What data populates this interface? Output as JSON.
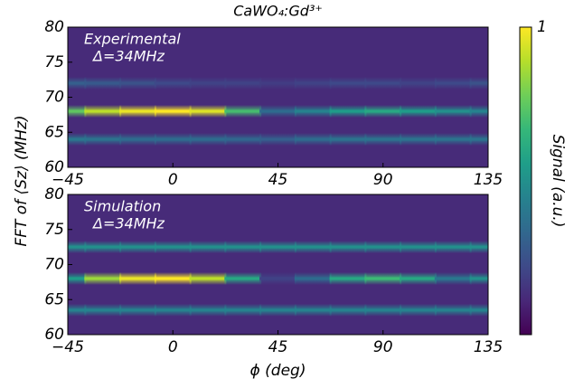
{
  "chart_data": [
    {
      "type": "heatmap",
      "title": "CaWO₄:Gd³⁺",
      "annotations": [
        "Experimental",
        "Δ=34MHz"
      ],
      "ylabel": "FFT of ⟨Sz⟩ (MHz)",
      "colormap": "viridis",
      "background_value": 0.12,
      "xlim": [
        -45,
        135
      ],
      "xticks": [
        {
          "value": -45,
          "label": "−45"
        },
        0,
        45,
        90,
        135
      ],
      "ylim": [
        60,
        80
      ],
      "yticks": [
        60,
        65,
        70,
        75,
        80
      ],
      "x": [
        -45,
        -30,
        -15,
        0,
        15,
        30,
        45,
        60,
        75,
        90,
        105,
        120,
        135
      ],
      "bands": [
        {
          "y": 72,
          "values": [
            0.3,
            0.28,
            0.25,
            0.22,
            0.2,
            0.2,
            0.18,
            0.2,
            0.22,
            0.22,
            0.2,
            0.22,
            0.25
          ]
        },
        {
          "y": 68,
          "values": [
            0.75,
            0.9,
            0.97,
            1.0,
            0.95,
            0.7,
            0.35,
            0.45,
            0.55,
            0.6,
            0.55,
            0.5,
            0.45
          ]
        },
        {
          "y": 64,
          "values": [
            0.4,
            0.38,
            0.35,
            0.35,
            0.35,
            0.33,
            0.3,
            0.35,
            0.38,
            0.38,
            0.38,
            0.38,
            0.38
          ]
        }
      ]
    },
    {
      "type": "heatmap",
      "annotations": [
        "Simulation",
        "Δ=34MHz"
      ],
      "xlabel": "ϕ (deg)",
      "colormap": "viridis",
      "background_value": 0.12,
      "xlim": [
        -45,
        135
      ],
      "xticks": [
        {
          "value": -45,
          "label": "−45"
        },
        0,
        45,
        90,
        135
      ],
      "ylim": [
        60,
        80
      ],
      "yticks": [
        60,
        65,
        70,
        75,
        80
      ],
      "x": [
        -45,
        -30,
        -15,
        0,
        15,
        30,
        45,
        60,
        75,
        90,
        105,
        120,
        135
      ],
      "bands": [
        {
          "y": 72.5,
          "values": [
            0.5,
            0.5,
            0.5,
            0.5,
            0.5,
            0.5,
            0.5,
            0.5,
            0.5,
            0.5,
            0.5,
            0.5,
            0.5
          ]
        },
        {
          "y": 68,
          "values": [
            0.55,
            0.85,
            0.97,
            1.0,
            0.9,
            0.6,
            0.2,
            0.35,
            0.6,
            0.68,
            0.6,
            0.4,
            0.5
          ]
        },
        {
          "y": 63.5,
          "values": [
            0.45,
            0.45,
            0.45,
            0.45,
            0.45,
            0.45,
            0.45,
            0.45,
            0.45,
            0.45,
            0.45,
            0.45,
            0.45
          ]
        }
      ]
    }
  ],
  "colorbar": {
    "label": "Signal (a.u.)",
    "lim": [
      0,
      1
    ],
    "ticks": [
      1
    ]
  }
}
